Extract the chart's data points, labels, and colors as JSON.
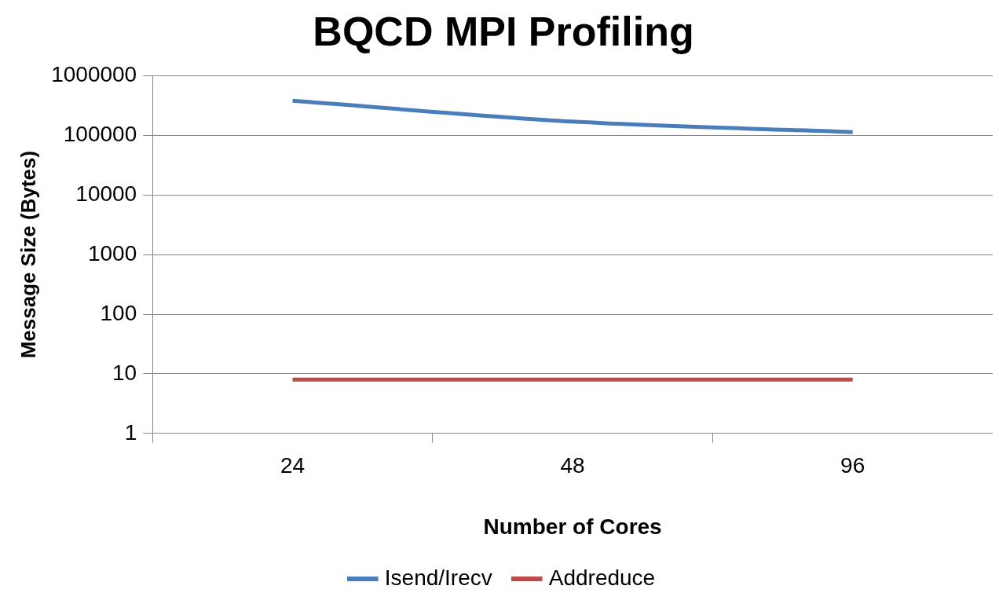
{
  "chart_data": {
    "type": "line",
    "title": "BQCD MPI Profiling",
    "xlabel": "Number of Cores",
    "ylabel": "Message Size (Bytes)",
    "categories": [
      "24",
      "48",
      "96"
    ],
    "series": [
      {
        "name": "Isend/Irecv",
        "color": "#4a7ebb",
        "values": [
          380000,
          170000,
          113000
        ]
      },
      {
        "name": "Addreduce",
        "color": "#be4b48",
        "values": [
          8,
          8,
          8
        ]
      }
    ],
    "ylim": [
      1,
      1000000
    ],
    "yticks": [
      1,
      10,
      100,
      1000,
      10000,
      100000,
      1000000
    ],
    "log": "y",
    "grid": "y",
    "legend": "bottom",
    "marker": "none"
  }
}
